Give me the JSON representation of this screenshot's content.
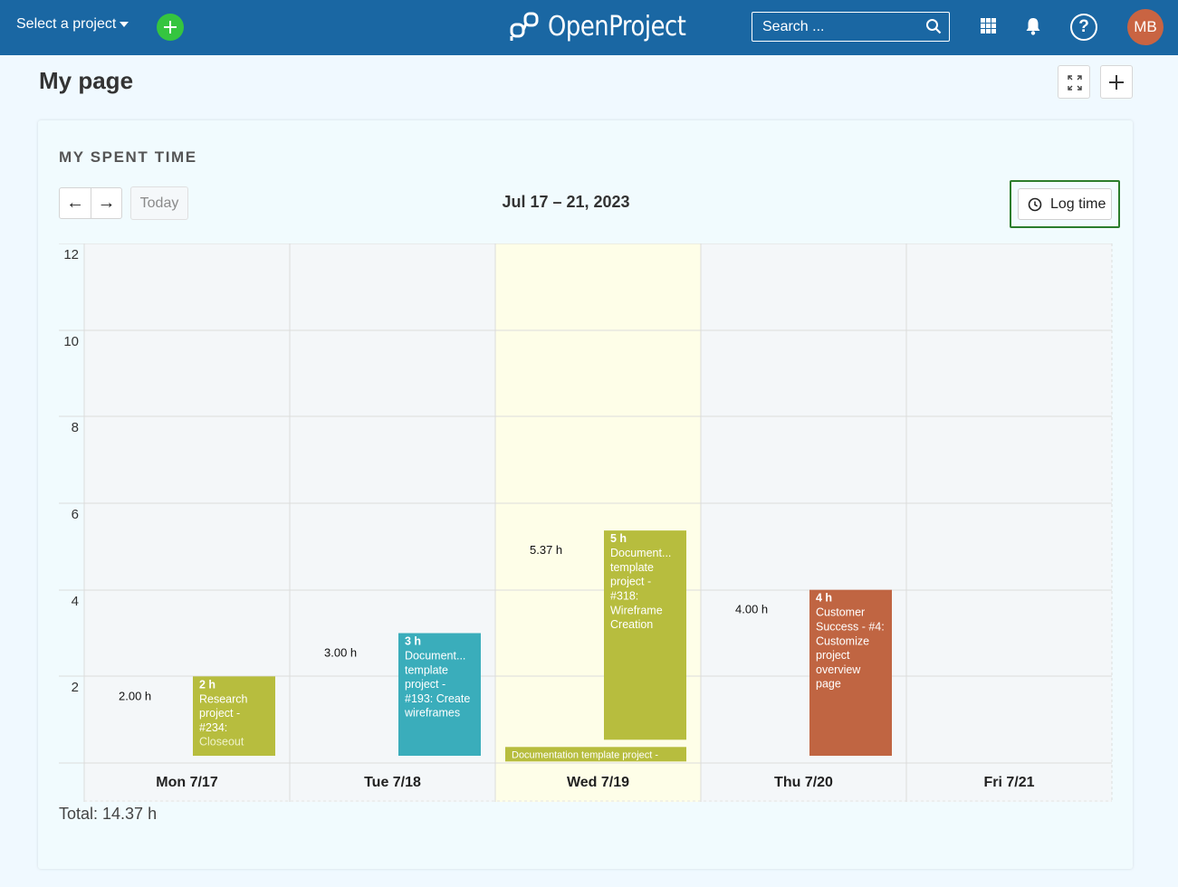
{
  "header": {
    "project_select": "Select a project",
    "logo_text": "OpenProject",
    "search_placeholder": "Search ...",
    "avatar_initials": "MB",
    "help_glyph": "?"
  },
  "page": {
    "title": "My page"
  },
  "widget": {
    "title": "MY SPENT TIME",
    "nav_prev": "←",
    "nav_next": "→",
    "today_label": "Today",
    "date_range": "Jul 17 – 21, 2023",
    "log_time_label": "Log time",
    "total": "Total: 14.37 h"
  },
  "colors": {
    "header": "#1a67a3",
    "add_button": "#35c53f",
    "avatar": "#c96442",
    "today_highlight": "#fefee8",
    "olive": "#b7bd3e",
    "teal": "#3aadbb",
    "rust": "#c06542"
  },
  "chart_data": {
    "type": "bar",
    "ylim": [
      0,
      12
    ],
    "yticks": [
      2,
      4,
      6,
      8,
      10,
      12
    ],
    "categories": [
      "Mon 7/17",
      "Tue 7/18",
      "Wed 7/19",
      "Thu 7/20",
      "Fri 7/21"
    ],
    "today_index": 2,
    "day_totals": [
      "2.00 h",
      "3.00 h",
      "5.37 h",
      "4.00 h",
      ""
    ],
    "day_total_values": [
      2.0,
      3.0,
      5.37,
      4.0,
      0
    ],
    "entries": [
      {
        "day": 0,
        "start": 0,
        "hours": 2,
        "color": "olive",
        "hours_label": "2 h",
        "lines": [
          "Research",
          "project -",
          "#234:",
          "Closeout"
        ],
        "dim_last": true
      },
      {
        "day": 1,
        "start": 0,
        "hours": 3,
        "color": "teal",
        "hours_label": "3 h",
        "lines": [
          "Document...",
          "template",
          "project -",
          "#193: Create",
          "wireframes"
        ],
        "dim_last": false
      },
      {
        "day": 2,
        "start": 0.37,
        "hours": 5,
        "color": "olive",
        "hours_label": "5 h",
        "lines": [
          "Document...",
          "template",
          "project -",
          "#318:",
          "Wireframe",
          "Creation"
        ],
        "dim_last": false
      },
      {
        "day": 2,
        "start": 0,
        "hours": 0.37,
        "color": "olive",
        "wide": true,
        "hours_label": "",
        "lines": [
          "Documentation template project -"
        ],
        "dim_last": false
      },
      {
        "day": 3,
        "start": 0,
        "hours": 4,
        "color": "rust",
        "hours_label": "4 h",
        "lines": [
          "Customer",
          "Success - #4:",
          "Customize",
          "project",
          "overview",
          "page"
        ],
        "dim_last": false
      }
    ]
  }
}
